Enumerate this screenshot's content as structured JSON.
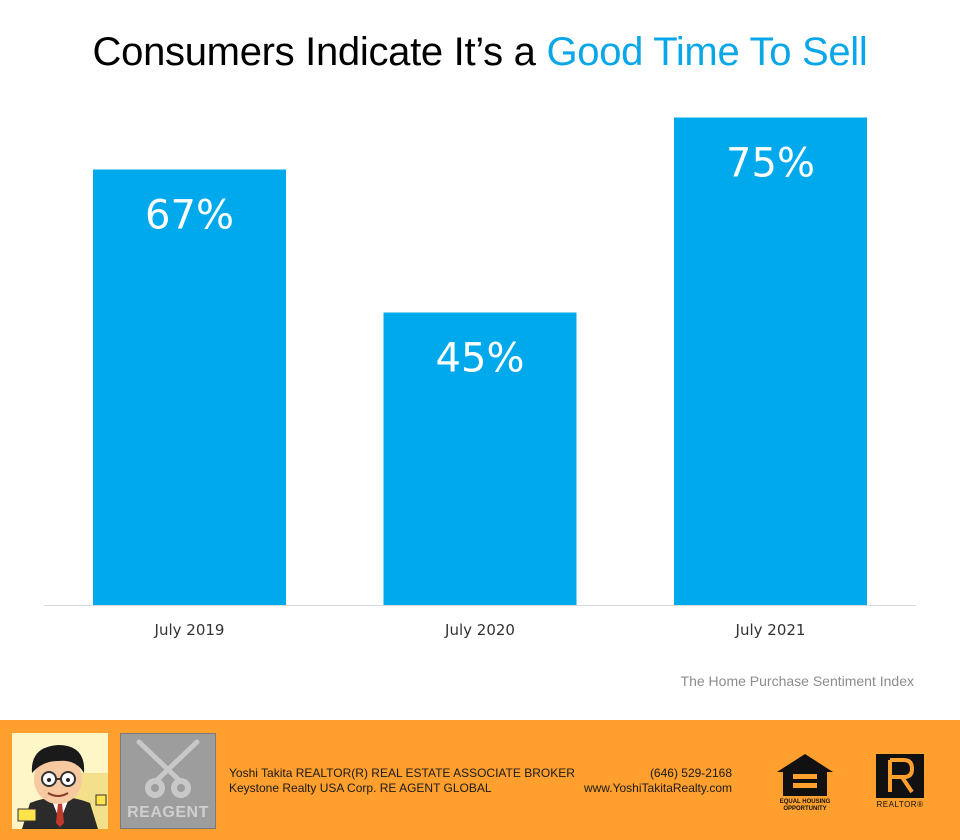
{
  "title": {
    "prefix": "Consumers Indicate It’s a ",
    "highlight": "Good Time To Sell"
  },
  "colors": {
    "bar": "#00a8ec",
    "accent": "#0aa7e8",
    "footer": "#ff9f2e",
    "axis_line": "#d9d9d9",
    "tick_text": "#333333",
    "label_text": "#ffffff"
  },
  "chart_data": {
    "type": "bar",
    "title": "Consumers Indicate It’s a Good Time To Sell",
    "categories": [
      "July 2019",
      "July 2020",
      "July 2021"
    ],
    "values": [
      67,
      45,
      75
    ],
    "value_labels": [
      "67%",
      "45%",
      "75%"
    ],
    "xlabel": "",
    "ylabel": "",
    "ylim": [
      0,
      100
    ],
    "grid": false,
    "legend": "none"
  },
  "source": "The Home Purchase Sentiment Index",
  "footer": {
    "agent_line1": "Yoshi Takita REALTOR(R) REAL ESTATE ASSOCIATE BROKER",
    "agent_line2": "Keystone Realty USA Corp.  RE AGENT GLOBAL",
    "phone": "(646) 529-2168",
    "website": "www.YoshiTakitaRealty.com",
    "logo_text": "REAGENT",
    "eho_caption_line1": "EQUAL HOUSING",
    "eho_caption_line2": "OPPORTUNITY",
    "realtor_caption": "REALTOR®"
  }
}
